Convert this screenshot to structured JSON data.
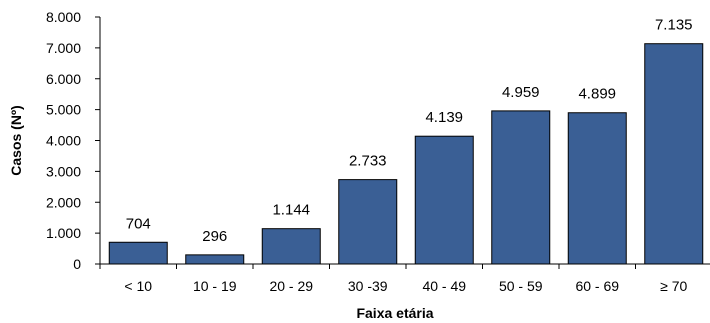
{
  "chart_data": {
    "type": "bar",
    "categories": [
      "< 10",
      "10 - 19",
      "20 - 29",
      "30 -39",
      "40 - 49",
      "50 - 59",
      "60 - 69",
      "≥ 70"
    ],
    "values": [
      704,
      296,
      1144,
      2733,
      4139,
      4959,
      4899,
      7135
    ],
    "value_labels": [
      "704",
      "296",
      "1.144",
      "2.733",
      "4.139",
      "4.959",
      "4.899",
      "7.135"
    ],
    "xlabel": "Faixa etária",
    "ylabel": "Casos (Nº)",
    "ylim": [
      0,
      8000
    ],
    "yticks": [
      0,
      1000,
      2000,
      3000,
      4000,
      5000,
      6000,
      7000,
      8000
    ],
    "ytick_labels": [
      "0",
      "1.000",
      "2.000",
      "3.000",
      "4.000",
      "5.000",
      "6.000",
      "7.000",
      "8.000"
    ],
    "bar_color": "#3A5F95",
    "grid": false,
    "legend": "none"
  }
}
